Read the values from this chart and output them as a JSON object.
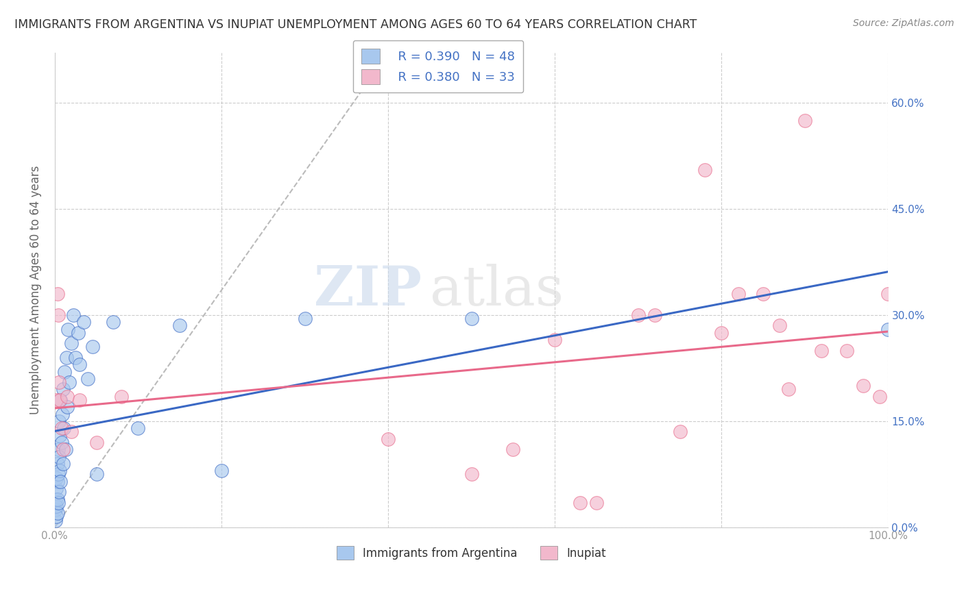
{
  "title": "IMMIGRANTS FROM ARGENTINA VS INUPIAT UNEMPLOYMENT AMONG AGES 60 TO 64 YEARS CORRELATION CHART",
  "source": "Source: ZipAtlas.com",
  "ylabel": "Unemployment Among Ages 60 to 64 years",
  "xlim": [
    0,
    100
  ],
  "ylim": [
    0,
    67
  ],
  "x_ticks": [
    0,
    20,
    40,
    60,
    80,
    100
  ],
  "x_tick_labels": [
    "0.0%",
    "",
    "",
    "",
    "",
    "100.0%"
  ],
  "y_ticks_left": [
    0,
    15,
    30,
    45,
    60
  ],
  "y_tick_labels_left": [
    "",
    "",
    "",
    "",
    ""
  ],
  "y_ticks_right": [
    0,
    15,
    30,
    45,
    60
  ],
  "y_tick_labels_right": [
    "0.0%",
    "15.0%",
    "30.0%",
    "45.0%",
    "60.0%"
  ],
  "legend_r_blue": "R = 0.390",
  "legend_n_blue": "N = 48",
  "legend_r_pink": "R = 0.380",
  "legend_n_pink": "N = 33",
  "watermark_zip": "ZIP",
  "watermark_atlas": "atlas",
  "blue_scatter_x": [
    0.1,
    0.1,
    0.1,
    0.2,
    0.2,
    0.2,
    0.2,
    0.3,
    0.3,
    0.3,
    0.3,
    0.4,
    0.4,
    0.4,
    0.5,
    0.5,
    0.5,
    0.6,
    0.6,
    0.7,
    0.7,
    0.8,
    0.9,
    1.0,
    1.0,
    1.1,
    1.2,
    1.3,
    1.4,
    1.5,
    1.6,
    1.7,
    2.0,
    2.2,
    2.5,
    2.8,
    3.0,
    3.5,
    4.0,
    4.5,
    5.0,
    7.0,
    10.0,
    15.0,
    20.0,
    30.0,
    50.0,
    100.0
  ],
  "blue_scatter_y": [
    1.0,
    2.5,
    4.0,
    1.5,
    3.0,
    5.5,
    7.0,
    2.0,
    4.0,
    6.5,
    9.0,
    3.5,
    7.5,
    11.0,
    5.0,
    10.0,
    15.0,
    8.0,
    13.0,
    6.5,
    18.0,
    12.0,
    16.0,
    9.0,
    19.5,
    14.0,
    22.0,
    11.0,
    24.0,
    17.0,
    28.0,
    20.5,
    26.0,
    30.0,
    24.0,
    27.5,
    23.0,
    29.0,
    21.0,
    25.5,
    7.5,
    29.0,
    14.0,
    28.5,
    8.0,
    29.5,
    29.5,
    28.0
  ],
  "pink_scatter_x": [
    0.2,
    0.3,
    0.4,
    0.5,
    0.6,
    0.8,
    1.0,
    1.5,
    2.0,
    3.0,
    5.0,
    8.0,
    40.0,
    50.0,
    55.0,
    60.0,
    63.0,
    65.0,
    70.0,
    72.0,
    75.0,
    78.0,
    80.0,
    82.0,
    85.0,
    87.0,
    88.0,
    90.0,
    92.0,
    95.0,
    97.0,
    99.0,
    100.0
  ],
  "pink_scatter_y": [
    18.0,
    33.0,
    30.0,
    20.5,
    18.0,
    14.0,
    11.0,
    18.5,
    13.5,
    18.0,
    12.0,
    18.5,
    12.5,
    7.5,
    11.0,
    26.5,
    3.5,
    3.5,
    30.0,
    30.0,
    13.5,
    50.5,
    27.5,
    33.0,
    33.0,
    28.5,
    19.5,
    57.5,
    25.0,
    25.0,
    20.0,
    18.5,
    33.0
  ],
  "blue_color": "#A8C8EE",
  "pink_color": "#F2B8CC",
  "blue_line_color": "#3A68C4",
  "pink_line_color": "#E8698A",
  "bg_color": "#FFFFFF",
  "grid_color": "#CCCCCC",
  "title_color": "#333333",
  "axis_label_color": "#666666",
  "tick_color": "#999999",
  "right_tick_color": "#4472C4",
  "legend_color": "#4472C4",
  "diag_color": "#BBBBBB"
}
